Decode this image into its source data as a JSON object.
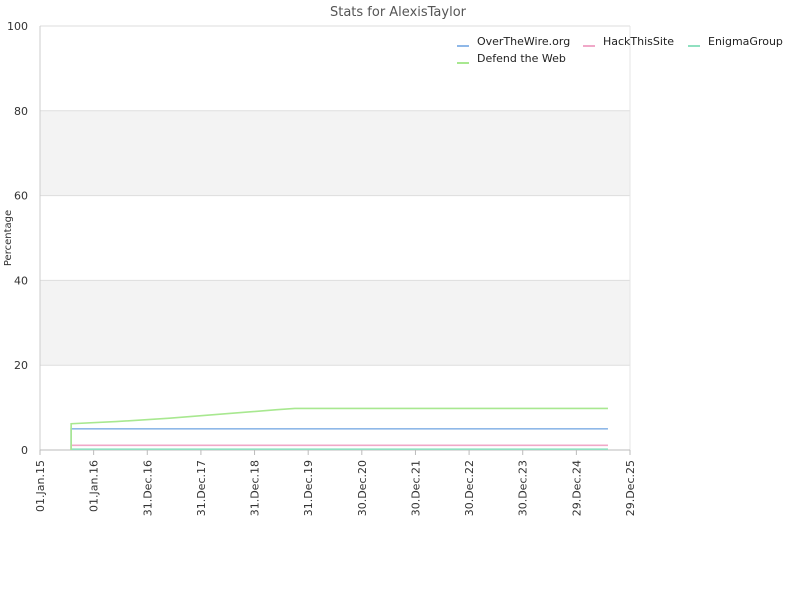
{
  "chart_data": {
    "type": "line",
    "title": "Stats for AlexisTaylor",
    "xlabel": "",
    "ylabel": "Percentage",
    "ylim": [
      0,
      100
    ],
    "yticks": [
      0,
      20,
      40,
      60,
      80,
      100
    ],
    "xlim": [
      "2015-01-01",
      "2025-12-29"
    ],
    "xticks": [
      {
        "date": "2015-01-01",
        "label": "01.Jan.15"
      },
      {
        "date": "2016-01-01",
        "label": "01.Jan.16"
      },
      {
        "date": "2016-12-31",
        "label": "31.Dec.16"
      },
      {
        "date": "2017-12-31",
        "label": "31.Dec.17"
      },
      {
        "date": "2018-12-31",
        "label": "31.Dec.18"
      },
      {
        "date": "2019-12-31",
        "label": "31.Dec.19"
      },
      {
        "date": "2020-12-30",
        "label": "30.Dec.20"
      },
      {
        "date": "2021-12-30",
        "label": "30.Dec.21"
      },
      {
        "date": "2022-12-30",
        "label": "30.Dec.22"
      },
      {
        "date": "2023-12-30",
        "label": "30.Dec.23"
      },
      {
        "date": "2024-12-29",
        "label": "29.Dec.24"
      },
      {
        "date": "2025-12-29",
        "label": "29.Dec.25"
      }
    ],
    "grid": "alternating horizontal bands",
    "legend_position": "top-right",
    "series": [
      {
        "name": "OverTheWire.org",
        "color": "#8fb8e8",
        "points": [
          {
            "x": "2015-08-01",
            "y": 0
          },
          {
            "x": "2015-08-01",
            "y": 5
          },
          {
            "x": "2025-08-01",
            "y": 5
          }
        ]
      },
      {
        "name": "HackThisSite",
        "color": "#f0a8c8",
        "points": [
          {
            "x": "2015-08-01",
            "y": 0
          },
          {
            "x": "2015-08-01",
            "y": 1.1
          },
          {
            "x": "2025-08-01",
            "y": 1.1
          }
        ]
      },
      {
        "name": "EnigmaGroup",
        "color": "#90e0c0",
        "points": [
          {
            "x": "2015-08-01",
            "y": 0.2
          },
          {
            "x": "2025-08-01",
            "y": 0.2
          }
        ]
      },
      {
        "name": "Defend the Web",
        "color": "#a8e890",
        "points": [
          {
            "x": "2015-08-01",
            "y": 0
          },
          {
            "x": "2015-08-01",
            "y": 6.2
          },
          {
            "x": "2016-06-01",
            "y": 6.7
          },
          {
            "x": "2017-06-01",
            "y": 7.5
          },
          {
            "x": "2018-06-01",
            "y": 8.5
          },
          {
            "x": "2019-06-01",
            "y": 9.5
          },
          {
            "x": "2019-10-01",
            "y": 9.8
          },
          {
            "x": "2025-08-01",
            "y": 9.8
          }
        ]
      }
    ]
  }
}
